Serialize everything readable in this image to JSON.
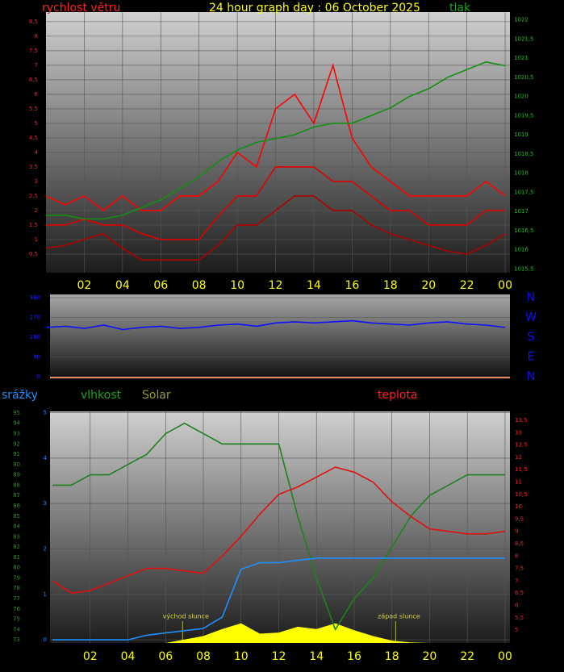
{
  "chart_data": [
    {
      "type": "line",
      "title": "24 hour graph day : 06 October 2025",
      "ylabel": "rychlost větru",
      "y2label": "tlak",
      "x": [
        0,
        1,
        2,
        3,
        4,
        5,
        6,
        7,
        8,
        9,
        10,
        11,
        12,
        13,
        14,
        15,
        16,
        17,
        18,
        19,
        20,
        21,
        22,
        23,
        24
      ],
      "xlim": [
        0,
        24.25
      ],
      "xticks": [
        {
          "value": 2,
          "label": "02"
        },
        {
          "value": 4,
          "label": "04"
        },
        {
          "value": 6,
          "label": "06"
        },
        {
          "value": 8,
          "label": "08"
        },
        10,
        12,
        14,
        16,
        18,
        20,
        22,
        {
          "value": 24,
          "label": "00"
        }
      ],
      "ylim": [
        -0.14,
        8.83
      ],
      "yticks": [
        {
          "value": 0.5,
          "label": "0,5"
        },
        1,
        {
          "value": 1.5,
          "label": "1,5"
        },
        2,
        {
          "value": 2.5,
          "label": "2,5"
        },
        3,
        {
          "value": 3.5,
          "label": "3,5"
        },
        4,
        {
          "value": 4.5,
          "label": "4,5"
        },
        5,
        {
          "value": 5.5,
          "label": "5,5"
        },
        6,
        {
          "value": 6.5,
          "label": "6,5"
        },
        7,
        {
          "value": 7.5,
          "label": "7,5"
        },
        8,
        {
          "value": 8.5,
          "label": "8,5"
        }
      ],
      "y2lim": [
        1015.4,
        1022.2
      ],
      "y2ticks": [
        {
          "value": 1015.5,
          "label": "1015,5"
        },
        1016,
        {
          "value": 1016.5,
          "label": "1016,5"
        },
        1017,
        {
          "value": 1017.5,
          "label": "1017,5"
        },
        1018,
        {
          "value": 1018.5,
          "label": "1018,5"
        },
        1019,
        {
          "value": 1019.5,
          "label": "1019,5"
        },
        1020,
        {
          "value": 1020.5,
          "label": "1020,5"
        },
        1021,
        {
          "value": 1021.5,
          "label": "1021,5"
        },
        1022
      ],
      "grid": true,
      "series": [
        {
          "color": "#ff0000",
          "values": [
            2.5,
            2.2,
            2.5,
            2.0,
            2.5,
            2.0,
            2.0,
            2.5,
            2.5,
            3.0,
            4.0,
            3.5,
            5.5,
            6.0,
            5.0,
            7.0,
            4.5,
            3.5,
            3.0,
            2.5,
            2.5,
            2.5,
            2.5,
            3.0,
            2.5
          ]
        },
        {
          "color": "#e00000",
          "values": [
            1.5,
            1.5,
            1.7,
            1.5,
            1.5,
            1.2,
            1.0,
            1.0,
            1.0,
            1.8,
            2.5,
            2.5,
            3.5,
            3.5,
            3.5,
            3.0,
            3.0,
            2.5,
            2.0,
            2.0,
            1.5,
            1.5,
            1.5,
            2.0,
            2.0
          ]
        },
        {
          "color": "#b00000",
          "values": [
            0.7,
            0.8,
            1.0,
            1.2,
            0.7,
            0.3,
            0.3,
            0.3,
            0.3,
            0.8,
            1.5,
            1.5,
            2.0,
            2.5,
            2.5,
            2.0,
            2.0,
            1.5,
            1.2,
            1.0,
            0.8,
            0.6,
            0.5,
            0.8,
            1.2
          ]
        },
        {
          "color": "#109010",
          "axis": "y2",
          "values": [
            1016.9,
            1016.9,
            1016.8,
            1016.8,
            1016.9,
            1017.1,
            1017.3,
            1017.6,
            1017.9,
            1018.3,
            1018.6,
            1018.8,
            1018.9,
            1019.0,
            1019.2,
            1019.3,
            1019.3,
            1019.5,
            1019.7,
            1020.0,
            1020.2,
            1020.5,
            1020.7,
            1020.9,
            1020.8
          ]
        }
      ]
    },
    {
      "type": "line",
      "x": [
        0,
        1,
        2,
        3,
        4,
        5,
        6,
        7,
        8,
        9,
        10,
        11,
        12,
        13,
        14,
        15,
        16,
        17,
        18,
        19,
        20,
        21,
        22,
        23,
        24
      ],
      "xlim": [
        0.2,
        24.25
      ],
      "ylim": [
        0,
        360
      ],
      "yticks": [
        0,
        90,
        180,
        270,
        360
      ],
      "y2lim": [
        0,
        360
      ],
      "y2ticks": [
        {
          "value": 360,
          "label": "N"
        },
        {
          "value": 270,
          "label": "W"
        },
        {
          "value": 180,
          "label": "S"
        },
        {
          "value": 90,
          "label": "E"
        },
        {
          "value": 0,
          "label": "N"
        }
      ],
      "grid": true,
      "series": [
        {
          "color": "#1010ff",
          "values": [
            225,
            230,
            220,
            235,
            215,
            225,
            230,
            220,
            225,
            235,
            240,
            230,
            245,
            250,
            245,
            250,
            255,
            245,
            240,
            235,
            245,
            250,
            240,
            235,
            225
          ]
        }
      ]
    },
    {
      "type": "line",
      "ylabel": "vlhkost",
      "y2label": "teplota",
      "y3label": "srážky",
      "solar_label": "Solar",
      "x": [
        0,
        1,
        2,
        3,
        4,
        5,
        6,
        7,
        8,
        9,
        10,
        11,
        12,
        13,
        14,
        15,
        16,
        17,
        18,
        19,
        20,
        21,
        22,
        23,
        24
      ],
      "xlim": [
        -0.13,
        24.26
      ],
      "xticks": [
        {
          "value": 2,
          "label": "02"
        },
        {
          "value": 4,
          "label": "04"
        },
        {
          "value": 6,
          "label": "06"
        },
        {
          "value": 8,
          "label": "08"
        },
        10,
        12,
        14,
        16,
        18,
        20,
        22,
        {
          "value": 24,
          "label": "00"
        }
      ],
      "ylim": [
        72.7,
        95.15
      ],
      "yticks": [
        73,
        74,
        75,
        76,
        77,
        78,
        79,
        80,
        81,
        82,
        83,
        84,
        85,
        86,
        87,
        88,
        89,
        90,
        91,
        92,
        93,
        94,
        95
      ],
      "y2lim": [
        4.48,
        13.86
      ],
      "y2ticks": [
        5,
        {
          "value": 5.5,
          "label": "5,5"
        },
        6,
        {
          "value": 6.5,
          "label": "6,5"
        },
        7,
        {
          "value": 7.5,
          "label": "7,5"
        },
        8,
        {
          "value": 8.5,
          "label": "8,5"
        },
        9,
        {
          "value": 9.5,
          "label": "9,5"
        },
        10,
        {
          "value": 10.5,
          "label": "10,5"
        },
        11,
        {
          "value": 11.5,
          "label": "11,5"
        },
        12,
        {
          "value": 12.5,
          "label": "12,5"
        },
        13,
        {
          "value": 13.5,
          "label": "13,5"
        }
      ],
      "y3lim": [
        -0.07,
        5.03
      ],
      "y3ticks": [
        0,
        1,
        2,
        3,
        4,
        5
      ],
      "y4lim": [
        0,
        1000
      ],
      "grid": true,
      "annotations": [
        {
          "text": "východ slunce",
          "x": 6.9
        },
        {
          "text": "západ slunce",
          "x": 18.2
        }
      ],
      "series": [
        {
          "color": "#ffff00",
          "axis": "y4",
          "fill": true,
          "values": [
            0,
            0,
            0,
            0,
            0,
            0,
            0,
            15,
            30,
            60,
            85,
            40,
            45,
            70,
            60,
            85,
            55,
            30,
            10,
            2,
            0,
            0,
            0,
            0,
            0
          ]
        },
        {
          "color": "#208020",
          "values": [
            88,
            88,
            89,
            89,
            90,
            91,
            93,
            94,
            93,
            92,
            92,
            92,
            92,
            85,
            79,
            74,
            77,
            79,
            82,
            85,
            87,
            88,
            89,
            89,
            89
          ]
        },
        {
          "color": "#e01010",
          "axis": "y2",
          "values": [
            7,
            6.5,
            6.6,
            6.9,
            7.2,
            7.5,
            7.5,
            7.4,
            7.3,
            8,
            8.8,
            9.7,
            10.5,
            10.8,
            11.2,
            11.6,
            11.4,
            11,
            10.2,
            9.6,
            9.1,
            9,
            8.9,
            8.9,
            9
          ]
        },
        {
          "color": "#1e90ff",
          "axis": "y3",
          "values": [
            0,
            0,
            0,
            0,
            0,
            0.1,
            0.15,
            0.2,
            0.25,
            0.5,
            1.55,
            1.7,
            1.7,
            1.75,
            1.8,
            1.8,
            1.8,
            1.8,
            1.8,
            1.8,
            1.8,
            1.8,
            1.8,
            1.8,
            1.8
          ]
        }
      ]
    }
  ]
}
